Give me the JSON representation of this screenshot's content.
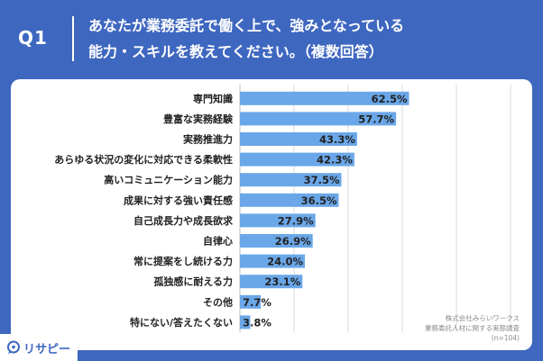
{
  "header": {
    "q_number": "Q1",
    "title_line1": "あなたが業務委託で働く上で、強みとなっている",
    "title_line2": "能力・スキルを教えてください。（複数回答）"
  },
  "chart_data": {
    "type": "bar",
    "orientation": "horizontal",
    "title": "あなたが業務委託で働く上で、強みとなっている能力・スキルを教えてください。（複数回答）",
    "categories": [
      "専門知識",
      "豊富な実務経験",
      "実務推進力",
      "あらゆる状況の変化に対応できる柔軟性",
      "高いコミュニケーション能力",
      "成果に対する強い責任感",
      "自己成長力や成長欲求",
      "自律心",
      "常に提案をし続ける力",
      "孤独感に耐える力",
      "その他",
      "特にない/答えたくない"
    ],
    "values": [
      62.5,
      57.7,
      43.3,
      42.3,
      37.5,
      36.5,
      27.9,
      26.9,
      24.0,
      23.1,
      7.7,
      3.8
    ],
    "value_labels": [
      "62.5%",
      "57.7%",
      "43.3%",
      "42.3%",
      "37.5%",
      "36.5%",
      "27.9%",
      "26.9%",
      "24.0%",
      "23.1%",
      "7.7%",
      "3.8%"
    ],
    "unit": "%",
    "xlim": [
      0,
      100
    ],
    "grid": true,
    "bar_color": "#6aa7e8"
  },
  "source": {
    "line1": "株式会社みらいワークス",
    "line2": "業務委託人材に関する実態調査",
    "line3": "(n=104)"
  },
  "brand": {
    "name": "リサピー",
    "icon": "speech-bubble-icon",
    "color": "#3e67c0"
  }
}
